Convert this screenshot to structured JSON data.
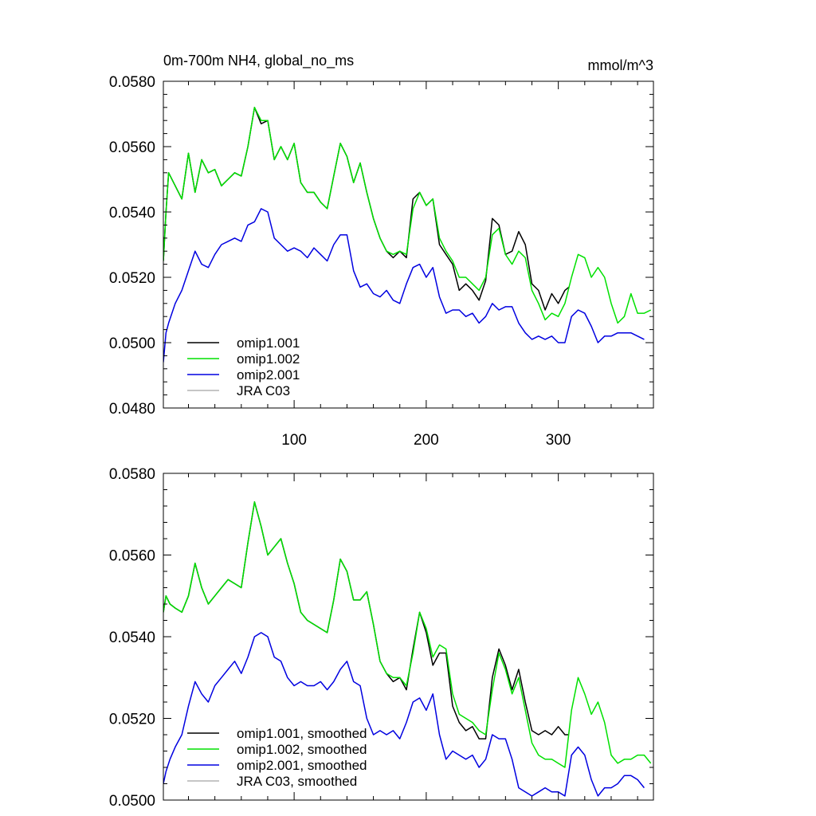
{
  "chart_data": [
    {
      "type": "line",
      "title": "0m-700m NH4, global_no_ms",
      "units": "mmol/m^3",
      "xlim": [
        1,
        372
      ],
      "ylim": [
        0.048,
        0.058
      ],
      "xticks": [
        100,
        200,
        300
      ],
      "xtick_labels": [
        "100",
        "200",
        "300"
      ],
      "yticks": [
        0.048,
        0.05,
        0.052,
        0.054,
        0.056,
        0.058
      ],
      "ytick_labels": [
        "0.0480",
        "0.0500",
        "0.0520",
        "0.0540",
        "0.0560",
        "0.0580"
      ],
      "legend_position": "bottom-left",
      "series": [
        {
          "name": "omip1.001",
          "color": "#000000",
          "x": [
            1,
            3,
            5,
            10,
            15,
            20,
            25,
            30,
            35,
            40,
            45,
            50,
            55,
            60,
            65,
            70,
            75,
            80,
            85,
            90,
            95,
            100,
            105,
            110,
            115,
            120,
            125,
            130,
            135,
            140,
            145,
            150,
            155,
            160,
            165,
            170,
            175,
            180,
            185,
            190,
            195,
            200,
            205,
            210,
            215,
            220,
            225,
            230,
            235,
            240,
            245,
            250,
            255,
            260,
            265,
            270,
            275,
            280,
            285,
            290,
            295,
            300,
            305,
            308
          ],
          "values": [
            0.0525,
            0.054,
            0.0552,
            0.0548,
            0.0544,
            0.0558,
            0.0546,
            0.0556,
            0.0552,
            0.0553,
            0.0548,
            0.055,
            0.0552,
            0.0551,
            0.056,
            0.0572,
            0.0567,
            0.0568,
            0.0556,
            0.056,
            0.0556,
            0.0561,
            0.0549,
            0.0546,
            0.0546,
            0.0543,
            0.0541,
            0.0551,
            0.0561,
            0.0557,
            0.0549,
            0.0555,
            0.0546,
            0.0538,
            0.0532,
            0.0528,
            0.0526,
            0.0528,
            0.0526,
            0.0544,
            0.0546,
            0.0542,
            0.0544,
            0.053,
            0.0527,
            0.0524,
            0.0516,
            0.0518,
            0.0516,
            0.0513,
            0.0519,
            0.0538,
            0.0536,
            0.0527,
            0.0528,
            0.0534,
            0.053,
            0.0518,
            0.0516,
            0.051,
            0.0515,
            0.0512,
            0.0516,
            0.0517
          ]
        },
        {
          "name": "omip1.002",
          "color": "#00e000",
          "x": [
            1,
            3,
            5,
            10,
            15,
            20,
            25,
            30,
            35,
            40,
            45,
            50,
            55,
            60,
            65,
            70,
            75,
            80,
            85,
            90,
            95,
            100,
            105,
            110,
            115,
            120,
            125,
            130,
            135,
            140,
            145,
            150,
            155,
            160,
            165,
            170,
            175,
            180,
            185,
            190,
            195,
            200,
            205,
            210,
            215,
            220,
            225,
            230,
            235,
            240,
            245,
            250,
            255,
            260,
            265,
            270,
            275,
            280,
            285,
            290,
            295,
            300,
            305,
            310,
            315,
            320,
            325,
            330,
            335,
            340,
            345,
            350,
            355,
            360,
            365,
            370
          ],
          "values": [
            0.0525,
            0.054,
            0.0552,
            0.0548,
            0.0544,
            0.0558,
            0.0546,
            0.0556,
            0.0552,
            0.0553,
            0.0548,
            0.055,
            0.0552,
            0.0551,
            0.056,
            0.0572,
            0.0568,
            0.0568,
            0.0556,
            0.056,
            0.0556,
            0.0561,
            0.0549,
            0.0546,
            0.0546,
            0.0543,
            0.0541,
            0.0551,
            0.0561,
            0.0557,
            0.0549,
            0.0555,
            0.0546,
            0.0538,
            0.0532,
            0.0528,
            0.0527,
            0.0528,
            0.0527,
            0.0541,
            0.0546,
            0.0542,
            0.0544,
            0.0532,
            0.0528,
            0.0525,
            0.052,
            0.052,
            0.0518,
            0.0516,
            0.052,
            0.0533,
            0.0535,
            0.0527,
            0.0524,
            0.0528,
            0.0526,
            0.0516,
            0.0512,
            0.0507,
            0.0509,
            0.0508,
            0.0512,
            0.052,
            0.0527,
            0.0526,
            0.052,
            0.0523,
            0.052,
            0.0512,
            0.0506,
            0.0508,
            0.0515,
            0.0509,
            0.0509,
            0.051
          ]
        },
        {
          "name": "omip2.001",
          "color": "#0000e0",
          "x": [
            1,
            3,
            5,
            10,
            15,
            20,
            25,
            30,
            35,
            40,
            45,
            50,
            55,
            60,
            65,
            70,
            75,
            80,
            85,
            90,
            95,
            100,
            105,
            110,
            115,
            120,
            125,
            130,
            135,
            140,
            145,
            150,
            155,
            160,
            165,
            170,
            175,
            180,
            185,
            190,
            195,
            200,
            205,
            210,
            215,
            220,
            225,
            230,
            235,
            240,
            245,
            250,
            255,
            260,
            265,
            270,
            275,
            280,
            285,
            290,
            295,
            300,
            305,
            310,
            315,
            320,
            325,
            330,
            335,
            340,
            345,
            350,
            355,
            360,
            365
          ],
          "values": [
            0.0494,
            0.0503,
            0.0506,
            0.0512,
            0.0516,
            0.0522,
            0.0528,
            0.0524,
            0.0523,
            0.0527,
            0.053,
            0.0531,
            0.0532,
            0.0531,
            0.0536,
            0.0537,
            0.0541,
            0.054,
            0.0532,
            0.053,
            0.0528,
            0.0529,
            0.0528,
            0.0526,
            0.0529,
            0.0527,
            0.0525,
            0.053,
            0.0533,
            0.0533,
            0.0522,
            0.0517,
            0.0518,
            0.0515,
            0.0514,
            0.0516,
            0.0513,
            0.0512,
            0.0518,
            0.0523,
            0.0524,
            0.052,
            0.0523,
            0.0514,
            0.0509,
            0.051,
            0.051,
            0.0508,
            0.0509,
            0.0506,
            0.0508,
            0.0512,
            0.051,
            0.0511,
            0.0511,
            0.0506,
            0.0503,
            0.0501,
            0.0502,
            0.0501,
            0.0502,
            0.05,
            0.05,
            0.0508,
            0.051,
            0.0509,
            0.0505,
            0.05,
            0.0502,
            0.0502,
            0.0503,
            0.0503,
            0.0503,
            0.0502,
            0.0501
          ]
        },
        {
          "name": "JRA C03",
          "color": "#b3b3b3",
          "x": [],
          "values": []
        }
      ]
    },
    {
      "type": "line",
      "title": "",
      "units": "",
      "xlim": [
        1,
        372
      ],
      "ylim": [
        0.05,
        0.058
      ],
      "xticks": [
        100,
        200,
        300
      ],
      "xtick_labels": [
        "",
        "",
        ""
      ],
      "yticks": [
        0.05,
        0.052,
        0.054,
        0.056,
        0.058
      ],
      "ytick_labels": [
        "0.0500",
        "0.0520",
        "0.0540",
        "0.0560",
        "0.0580"
      ],
      "legend_position": "bottom-left",
      "series": [
        {
          "name": "omip1.001, smoothed",
          "color": "#000000",
          "x": [
            1,
            3,
            6,
            10,
            15,
            20,
            25,
            30,
            35,
            40,
            45,
            50,
            55,
            60,
            65,
            70,
            75,
            80,
            85,
            90,
            95,
            100,
            105,
            110,
            115,
            120,
            125,
            130,
            135,
            140,
            145,
            150,
            155,
            160,
            165,
            170,
            175,
            180,
            185,
            190,
            195,
            200,
            205,
            210,
            215,
            220,
            225,
            230,
            235,
            240,
            245,
            250,
            255,
            260,
            265,
            270,
            275,
            280,
            285,
            290,
            295,
            300,
            305,
            308
          ],
          "values": [
            0.0546,
            0.055,
            0.0548,
            0.0547,
            0.0546,
            0.055,
            0.0558,
            0.0552,
            0.0548,
            0.055,
            0.0552,
            0.0554,
            0.0553,
            0.0552,
            0.0563,
            0.0573,
            0.0567,
            0.056,
            0.0562,
            0.0564,
            0.0558,
            0.0553,
            0.0546,
            0.0544,
            0.0543,
            0.0542,
            0.0541,
            0.0549,
            0.0559,
            0.0556,
            0.0549,
            0.0549,
            0.0551,
            0.0543,
            0.0534,
            0.0531,
            0.0529,
            0.053,
            0.0527,
            0.0537,
            0.0546,
            0.0541,
            0.0533,
            0.0536,
            0.0536,
            0.0523,
            0.0519,
            0.0517,
            0.0518,
            0.0515,
            0.0515,
            0.053,
            0.0537,
            0.0533,
            0.0527,
            0.0532,
            0.0524,
            0.0517,
            0.0516,
            0.0517,
            0.0516,
            0.0518,
            0.0516,
            0.0516
          ]
        },
        {
          "name": "omip1.002, smoothed",
          "color": "#00e000",
          "x": [
            1,
            3,
            6,
            10,
            15,
            20,
            25,
            30,
            35,
            40,
            45,
            50,
            55,
            60,
            65,
            70,
            75,
            80,
            85,
            90,
            95,
            100,
            105,
            110,
            115,
            120,
            125,
            130,
            135,
            140,
            145,
            150,
            155,
            160,
            165,
            170,
            175,
            180,
            185,
            190,
            195,
            200,
            205,
            210,
            215,
            220,
            225,
            230,
            235,
            240,
            245,
            250,
            255,
            260,
            265,
            270,
            275,
            280,
            285,
            290,
            295,
            300,
            305,
            310,
            315,
            320,
            325,
            330,
            335,
            340,
            345,
            350,
            355,
            360,
            365,
            370
          ],
          "values": [
            0.0546,
            0.055,
            0.0548,
            0.0547,
            0.0546,
            0.055,
            0.0558,
            0.0552,
            0.0548,
            0.055,
            0.0552,
            0.0554,
            0.0553,
            0.0552,
            0.0563,
            0.0573,
            0.0567,
            0.056,
            0.0562,
            0.0564,
            0.0558,
            0.0553,
            0.0546,
            0.0544,
            0.0543,
            0.0542,
            0.0541,
            0.0549,
            0.0559,
            0.0556,
            0.0549,
            0.0549,
            0.0551,
            0.0543,
            0.0534,
            0.0531,
            0.053,
            0.053,
            0.0528,
            0.0536,
            0.0546,
            0.0542,
            0.0535,
            0.0538,
            0.0537,
            0.0526,
            0.0521,
            0.052,
            0.0519,
            0.0517,
            0.0516,
            0.0527,
            0.0536,
            0.0532,
            0.0526,
            0.053,
            0.0522,
            0.0514,
            0.0511,
            0.051,
            0.051,
            0.0509,
            0.0508,
            0.0522,
            0.053,
            0.0526,
            0.0521,
            0.0524,
            0.0519,
            0.0511,
            0.0509,
            0.051,
            0.051,
            0.0511,
            0.0511,
            0.0509
          ]
        },
        {
          "name": "omip2.001, smoothed",
          "color": "#0000e0",
          "x": [
            1,
            3,
            6,
            10,
            15,
            20,
            25,
            30,
            35,
            40,
            45,
            50,
            55,
            60,
            65,
            70,
            75,
            80,
            85,
            90,
            95,
            100,
            105,
            110,
            115,
            120,
            125,
            130,
            135,
            140,
            145,
            150,
            155,
            160,
            165,
            170,
            175,
            180,
            185,
            190,
            195,
            200,
            205,
            210,
            215,
            220,
            225,
            230,
            235,
            240,
            245,
            250,
            255,
            260,
            265,
            270,
            275,
            280,
            285,
            290,
            295,
            300,
            305,
            310,
            315,
            320,
            325,
            330,
            335,
            340,
            345,
            350,
            355,
            360,
            365
          ],
          "values": [
            0.0504,
            0.0507,
            0.051,
            0.0513,
            0.0516,
            0.0523,
            0.0529,
            0.0526,
            0.0524,
            0.0528,
            0.053,
            0.0532,
            0.0534,
            0.0531,
            0.0535,
            0.054,
            0.0541,
            0.054,
            0.0535,
            0.0534,
            0.053,
            0.0528,
            0.0529,
            0.0528,
            0.0528,
            0.0529,
            0.0527,
            0.0529,
            0.0532,
            0.0534,
            0.0529,
            0.0528,
            0.052,
            0.0516,
            0.0517,
            0.0516,
            0.0517,
            0.0515,
            0.0519,
            0.0524,
            0.0525,
            0.0522,
            0.0526,
            0.0516,
            0.051,
            0.0512,
            0.0511,
            0.051,
            0.0511,
            0.0508,
            0.051,
            0.0516,
            0.0515,
            0.0515,
            0.051,
            0.0503,
            0.0502,
            0.0501,
            0.0502,
            0.0503,
            0.0502,
            0.0502,
            0.0501,
            0.0511,
            0.0513,
            0.0511,
            0.0505,
            0.0501,
            0.0503,
            0.0503,
            0.0504,
            0.0506,
            0.0506,
            0.0505,
            0.0503
          ]
        },
        {
          "name": "JRA C03, smoothed",
          "color": "#b3b3b3",
          "x": [],
          "values": []
        }
      ]
    }
  ]
}
